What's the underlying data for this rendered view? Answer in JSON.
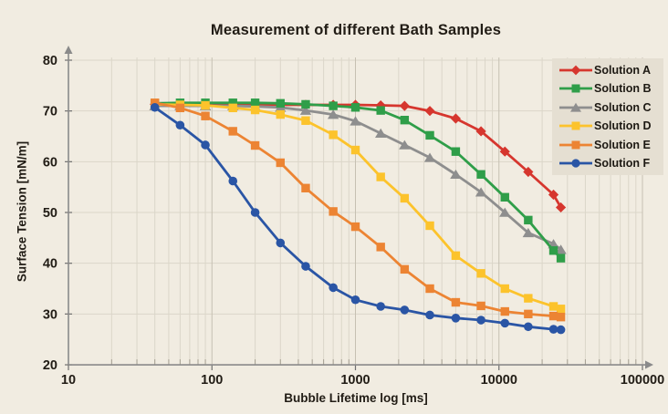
{
  "title": "Measurement of different Bath Samples",
  "axes": {
    "x_title": "Bubble Lifetime log [ms]",
    "y_title": "Surface Tension [mN/m]",
    "x_tick_labels": [
      "10",
      "100",
      "1000",
      "10000",
      "100000"
    ],
    "y_tick_labels": [
      "20",
      "30",
      "40",
      "50",
      "60",
      "70",
      "80"
    ]
  },
  "legend": {
    "items": [
      "Solution A",
      "Solution B",
      "Solution C",
      "Solution D",
      "Solution E",
      "Solution F"
    ],
    "background": "#e5dfd2"
  },
  "colors": {
    "page_background": "#f1ece1",
    "grid_minor": "#dbd6c9",
    "grid_major": "#c6c0b2",
    "axis_line": "#8a8a8a",
    "text": "#211c15"
  },
  "chart_data": {
    "type": "line",
    "title": "Measurement of different Bath Samples",
    "xlabel": "Bubble Lifetime log [ms]",
    "ylabel": "Surface Tension [mN/m]",
    "x_scale": "log",
    "xlim": [
      10,
      100000
    ],
    "ylim": [
      20,
      80
    ],
    "x_ticks": [
      10,
      100,
      1000,
      10000,
      100000
    ],
    "y_ticks": [
      20,
      30,
      40,
      50,
      60,
      70,
      80
    ],
    "grid": true,
    "legend_position": "top-right",
    "x": [
      40,
      60,
      90,
      140,
      200,
      300,
      450,
      700,
      1000,
      1500,
      2200,
      3300,
      5000,
      7500,
      11000,
      16000,
      24000,
      27000
    ],
    "series": [
      {
        "name": "Solution A",
        "color": "#d6362e",
        "marker": "diamond",
        "values": [
          71.3,
          71.3,
          71.3,
          71.3,
          71.3,
          71.2,
          71.2,
          71.2,
          71.2,
          71.1,
          71.0,
          70.0,
          68.5,
          66.0,
          62.0,
          58.0,
          53.5,
          51.0
        ]
      },
      {
        "name": "Solution B",
        "color": "#2f9e49",
        "marker": "square",
        "values": [
          71.5,
          71.6,
          71.6,
          71.6,
          71.6,
          71.5,
          71.3,
          71.0,
          70.7,
          70.1,
          68.2,
          65.2,
          62.0,
          57.5,
          53.0,
          48.5,
          42.5,
          41.0
        ]
      },
      {
        "name": "Solution C",
        "color": "#8e8e8e",
        "marker": "triangle",
        "values": [
          71.0,
          71.0,
          71.0,
          71.0,
          70.9,
          70.7,
          70.1,
          69.3,
          68.0,
          65.6,
          63.3,
          60.8,
          57.5,
          54.0,
          50.0,
          46.0,
          43.8,
          42.7
        ]
      },
      {
        "name": "Solution D",
        "color": "#fcc32c",
        "marker": "square",
        "values": [
          71.3,
          71.2,
          71.1,
          70.6,
          70.2,
          69.3,
          68.1,
          65.3,
          62.3,
          57.0,
          52.8,
          47.4,
          41.5,
          38.0,
          35.0,
          33.1,
          31.5,
          31.0
        ]
      },
      {
        "name": "Solution E",
        "color": "#ec8433",
        "marker": "square",
        "values": [
          71.6,
          70.6,
          69.0,
          66.0,
          63.2,
          59.8,
          54.8,
          50.2,
          47.2,
          43.2,
          38.8,
          35.0,
          32.3,
          31.6,
          30.5,
          30.0,
          29.6,
          29.4
        ]
      },
      {
        "name": "Solution F",
        "color": "#2a55a5",
        "marker": "circle",
        "values": [
          70.7,
          67.2,
          63.3,
          56.2,
          50.0,
          44.0,
          39.4,
          35.2,
          32.8,
          31.5,
          30.8,
          29.8,
          29.2,
          28.8,
          28.2,
          27.5,
          27.0,
          26.9
        ]
      }
    ]
  }
}
